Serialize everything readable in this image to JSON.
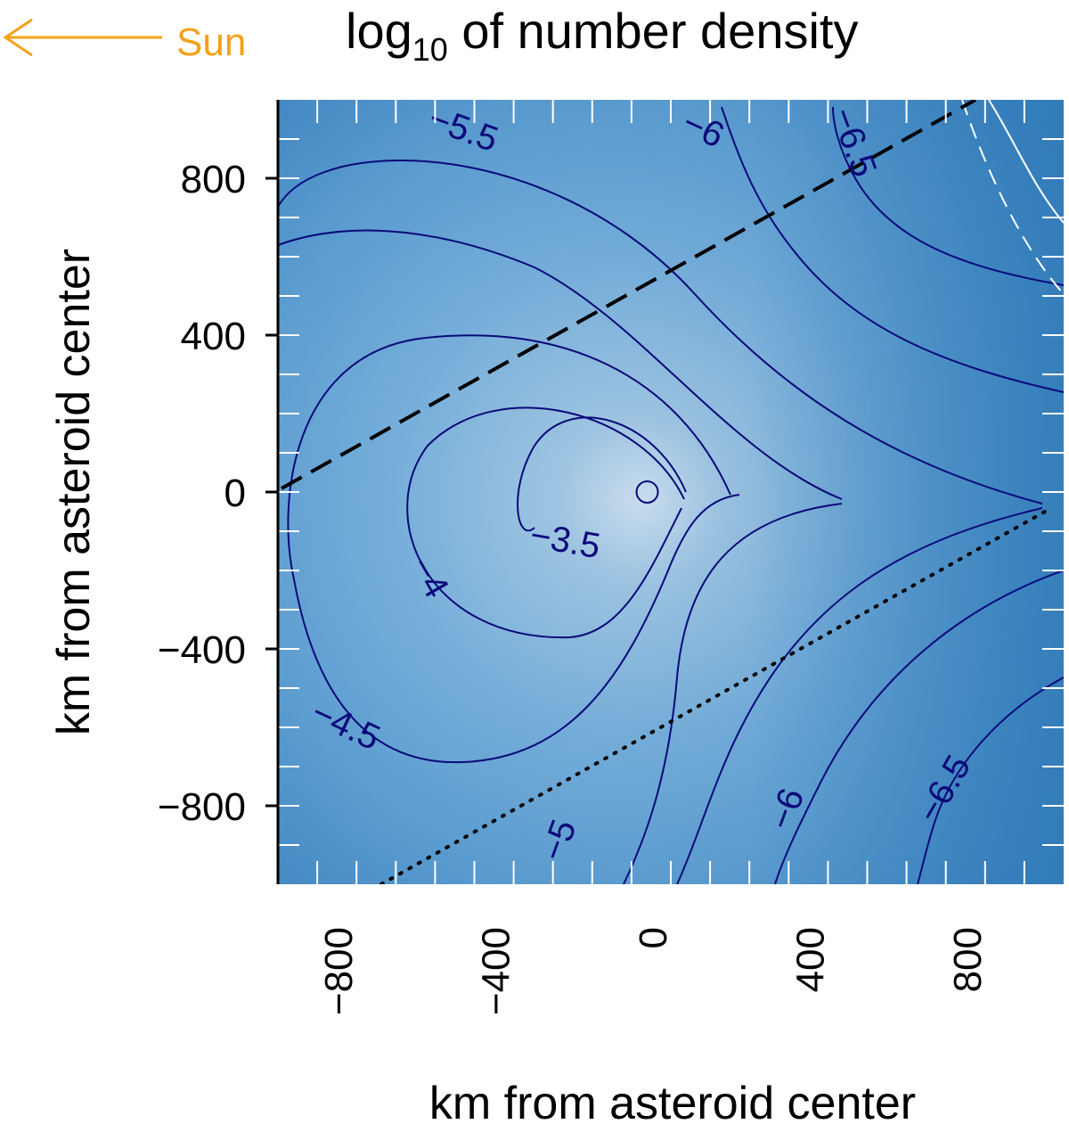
{
  "chart_data": {
    "type": "contour",
    "title": "log10 of number density",
    "title_base": "log",
    "title_subscript": "10",
    "title_rest": " of number density",
    "xlabel": "km from asteroid center",
    "ylabel": "km from asteroid center",
    "xlim": [
      -1000,
      1000
    ],
    "ylim": [
      -1000,
      1000
    ],
    "x_ticks": [
      -800,
      -400,
      0,
      400,
      800
    ],
    "x_tick_labels": [
      "−800",
      "−400",
      "0",
      "400",
      "800"
    ],
    "y_ticks": [
      -800,
      -400,
      0,
      400,
      800
    ],
    "y_tick_labels": [
      "−800",
      "−400",
      "0",
      "400",
      "800"
    ],
    "fill_colormap": "white-to-steelblue",
    "fill_color_low_density": "#2f7ab8",
    "fill_color_high_density": "#dbe9f4",
    "contour_color": "#0a0a7a",
    "contour_levels": [
      -3.5,
      -4,
      -4.5,
      -5,
      -5.5,
      -6,
      -6.5
    ],
    "contour_labels": [
      {
        "text": "−3.5",
        "x": -270,
        "y": -130
      },
      {
        "text": "−4",
        "x": -620,
        "y": -220
      },
      {
        "text": "−4.5",
        "x": -830,
        "y": -600
      },
      {
        "text": "−5",
        "x": -280,
        "y": -890
      },
      {
        "text": "−5.5",
        "x": -530,
        "y": 920
      },
      {
        "text": "−6",
        "x": 80,
        "y": 920
      },
      {
        "text": "−6.5",
        "x": 460,
        "y": 890
      },
      {
        "text": "−6",
        "x": 300,
        "y": -810
      },
      {
        "text": "−6.5",
        "x": 700,
        "y": -760
      }
    ],
    "asteroid": {
      "x": -60,
      "y": 0,
      "radius": 30
    },
    "dashed_line": {
      "from": [
        -1000,
        10
      ],
      "to": [
        760,
        1000
      ],
      "style": "dashed",
      "color": "#000000"
    },
    "dotted_line": {
      "from": [
        -760,
        -1000
      ],
      "to": [
        980,
        -30
      ],
      "style": "dotted",
      "color": "#000000"
    },
    "sun_indicator": {
      "label": "Sun",
      "direction": "left",
      "color": "#f5a11a"
    }
  }
}
